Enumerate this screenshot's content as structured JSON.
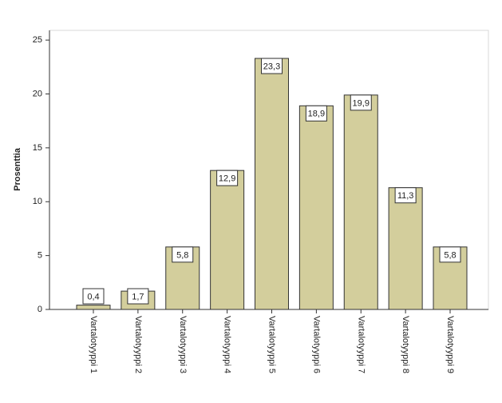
{
  "chart_data": {
    "type": "bar",
    "y_label": "Prosenttia",
    "categories": [
      "Vartalotyyppi 1",
      "Vartalotyyppi 2",
      "Vartalotyyppi 3",
      "Vartalotyyppi 4",
      "Vartalotyyppi 5",
      "Vartalotyyppi 6",
      "Vartalotyyppi 7",
      "Vartalotyyppi 8",
      "Vartalotyyppi 9"
    ],
    "values": [
      0.4,
      1.7,
      5.8,
      12.9,
      23.3,
      18.9,
      19.9,
      11.3,
      5.8
    ],
    "value_labels": [
      "0,4",
      "1,7",
      "5,8",
      "12,9",
      "23,3",
      "18,9",
      "19,9",
      "11,3",
      "5,8"
    ],
    "color": "#d3ce9c",
    "ylim": [
      0,
      25.9
    ],
    "yticks": [
      0,
      5,
      10,
      15,
      20,
      25
    ],
    "grid": false
  }
}
